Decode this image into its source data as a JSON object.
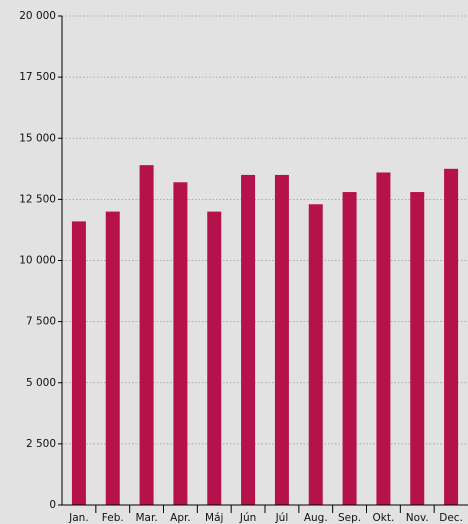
{
  "chart_data": {
    "type": "bar",
    "categories": [
      "Jan.",
      "Feb.",
      "Mar.",
      "Apr.",
      "Máj",
      "Jún",
      "Júl",
      "Aug.",
      "Sep.",
      "Okt.",
      "Nov.",
      "Dec."
    ],
    "values": [
      11600,
      12000,
      13900,
      13200,
      12000,
      13500,
      13500,
      12300,
      12800,
      13600,
      12800,
      13750
    ],
    "color": "#b5124b",
    "ylim": [
      0,
      20000
    ],
    "yticks": [
      0,
      {
        "value": 2500,
        "label": "2 500"
      },
      {
        "value": 5000,
        "label": "5 000"
      },
      {
        "value": 7500,
        "label": "7 500"
      },
      {
        "value": 10000,
        "label": "10 000"
      },
      {
        "value": 12500,
        "label": "12 500"
      },
      {
        "value": 15000,
        "label": "15 000"
      },
      {
        "value": 17500,
        "label": "17 500"
      },
      {
        "value": 20000,
        "label": "20 000"
      }
    ],
    "grid": true
  }
}
